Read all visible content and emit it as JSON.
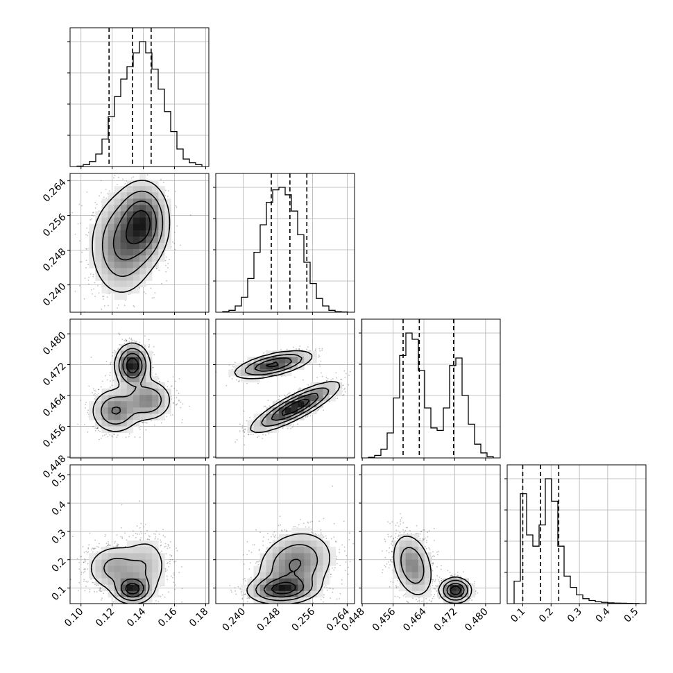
{
  "chart_data": {
    "type": "corner",
    "grid": true,
    "parameters": [
      {
        "ticks": [
          "0.10",
          "0.12",
          "0.14",
          "0.16",
          "0.18"
        ],
        "tick_values": [
          0.1,
          0.12,
          0.14,
          0.16,
          0.18
        ],
        "range": [
          0.093,
          0.182
        ],
        "quantiles": [
          0.118,
          0.133,
          0.145
        ],
        "hist": [
          0.3,
          1.5,
          4,
          10,
          22,
          40,
          56,
          70,
          80,
          91,
          100,
          91,
          78,
          62,
          44,
          28,
          14,
          6,
          3,
          1.5
        ]
      },
      {
        "ticks": [
          "0.240",
          "0.248",
          "0.256",
          "0.264"
        ],
        "tick_values": [
          0.24,
          0.248,
          0.256,
          0.264
        ],
        "range": [
          0.2337,
          0.2657
        ],
        "quantiles": [
          0.2465,
          0.2508,
          0.2547
        ],
        "hist": [
          0.5,
          1.5,
          5,
          12,
          27,
          48,
          70,
          88,
          98,
          100,
          94,
          81,
          62,
          40,
          23,
          11,
          5,
          1.5,
          0.5,
          0.2
        ]
      },
      {
        "ticks": [
          "0.448",
          "0.456",
          "0.464",
          "0.472",
          "0.480"
        ],
        "tick_values": [
          0.448,
          0.456,
          0.464,
          0.472,
          0.48
        ],
        "range": [
          0.4478,
          0.4838
        ],
        "quantiles": [
          0.4586,
          0.4628,
          0.4717
        ],
        "hist": [
          0.5,
          2,
          7,
          20,
          48,
          82,
          100,
          95,
          70,
          40,
          24,
          22,
          40,
          74,
          80,
          50,
          27,
          11,
          4,
          1
        ]
      },
      {
        "ticks": [
          "0.1",
          "0.2",
          "0.3",
          "0.4",
          "0.5"
        ],
        "tick_values": [
          0.1,
          0.2,
          0.3,
          0.4,
          0.5
        ],
        "range": [
          0.045,
          0.535
        ],
        "quantiles": [
          0.1,
          0.163,
          0.227
        ],
        "hist": [
          18,
          88,
          55,
          46,
          63,
          100,
          82,
          46,
          22,
          13,
          7,
          4,
          2.5,
          1.5,
          1,
          0.6,
          0.4,
          0.3,
          0.2,
          0.1
        ]
      }
    ],
    "joint": [
      {
        "row": 1,
        "col": 0,
        "modes": [
          [
            0.126,
            0.249,
            0.0105,
            0.006,
            0.55
          ],
          [
            0.14,
            0.2545,
            0.0085,
            0.0048,
            0.5
          ]
        ]
      },
      {
        "row": 2,
        "col": 0,
        "modes": [
          [
            0.133,
            0.4718,
            0.0055,
            0.0028,
            0.4
          ],
          [
            0.122,
            0.46,
            0.008,
            0.003,
            0.35
          ],
          [
            0.143,
            0.4628,
            0.008,
            0.0028,
            0.3
          ]
        ]
      },
      {
        "row": 2,
        "col": 1,
        "modes": [
          [
            0.247,
            0.472,
            0.0045,
            0.0018,
            0.4,
            0.6
          ],
          [
            0.252,
            0.461,
            0.005,
            0.0032,
            0.6,
            0.85
          ]
        ]
      },
      {
        "row": 3,
        "col": 0,
        "modes": [
          [
            0.122,
            0.17,
            0.01,
            0.045,
            0.45
          ],
          [
            0.142,
            0.18,
            0.008,
            0.06,
            0.3
          ],
          [
            0.133,
            0.095,
            0.006,
            0.025,
            0.35
          ]
        ]
      },
      {
        "row": 3,
        "col": 1,
        "modes": [
          [
            0.252,
            0.185,
            0.0045,
            0.06,
            0.65,
            0.2
          ],
          [
            0.249,
            0.095,
            0.004,
            0.025,
            0.35,
            0.1
          ]
        ]
      },
      {
        "row": 3,
        "col": 2,
        "modes": [
          [
            0.461,
            0.18,
            0.0028,
            0.06,
            0.65,
            -0.3
          ],
          [
            0.4722,
            0.092,
            0.002,
            0.022,
            0.35,
            0.0
          ]
        ]
      }
    ]
  }
}
